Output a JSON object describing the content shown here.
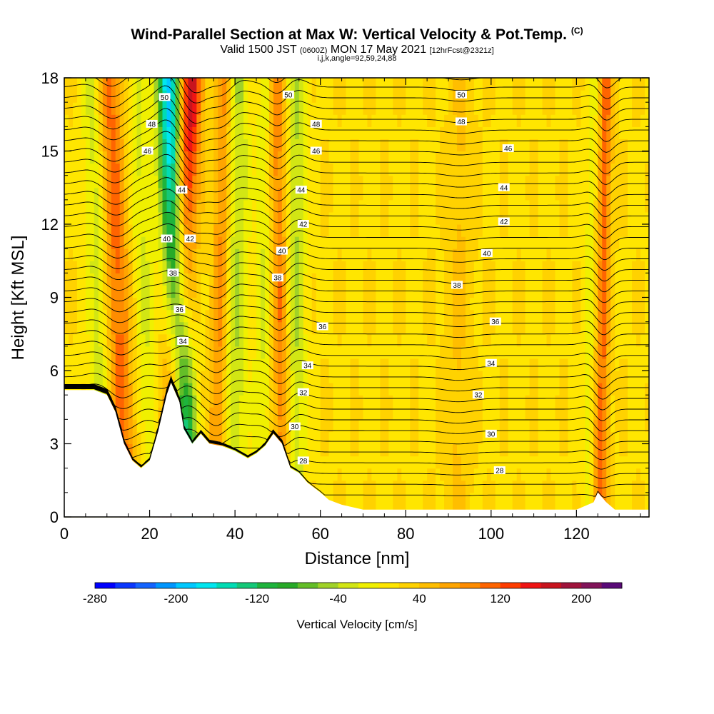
{
  "header": {
    "title": "Wind-Parallel Section at Max W: Vertical Velocity & Pot.Temp.",
    "copyright_mark": "(C)",
    "valid_prefix": "Valid 1500 JST",
    "valid_utc": "(0600Z)",
    "valid_date": "MON 17 May 2021",
    "forecast": "[12hrFcst@2321z]",
    "indices": "i,j,k,angle=92,59,24,88"
  },
  "chart_data": {
    "type": "heatmap",
    "xlabel": "Distance [nm]",
    "ylabel": "Height [Kft MSL]",
    "xlim": [
      0,
      137
    ],
    "ylim": [
      0,
      18
    ],
    "x_ticks": [
      0,
      20,
      40,
      60,
      80,
      100,
      120
    ],
    "y_ticks": [
      0,
      3,
      6,
      9,
      12,
      15,
      18
    ],
    "grid": false,
    "colorbar": {
      "label": "Vertical Velocity [cm/s]",
      "tick_values": [
        -280,
        -200,
        -120,
        -40,
        40,
        120,
        200
      ],
      "range": [
        -280,
        240
      ],
      "step": 20,
      "colors": [
        "#0000ff",
        "#0a37ff",
        "#1464ff",
        "#0096ff",
        "#00c8ff",
        "#00e6f0",
        "#00dcb4",
        "#14c878",
        "#1eb43c",
        "#28aa28",
        "#64be28",
        "#a0d228",
        "#d2e614",
        "#f0f000",
        "#ffe600",
        "#ffd200",
        "#ffbe00",
        "#ffa500",
        "#ff8c00",
        "#ff6400",
        "#ff3c00",
        "#f01414",
        "#c8141e",
        "#a0143c",
        "#82145a",
        "#5a0a78"
      ]
    },
    "terrain_profile": {
      "x": [
        0,
        7,
        10,
        12,
        14,
        16,
        18,
        20,
        22,
        24,
        25,
        27,
        28,
        30,
        32,
        34,
        37,
        40,
        43,
        45,
        47,
        49,
        51,
        53,
        55,
        57,
        60,
        62,
        65,
        70,
        100,
        120,
        124,
        125,
        127,
        129,
        131,
        137
      ],
      "y": [
        5.2,
        5.2,
        5.0,
        4.3,
        3.0,
        2.3,
        2.0,
        2.3,
        3.5,
        5.0,
        5.5,
        4.7,
        3.6,
        3.0,
        3.4,
        3.0,
        2.9,
        2.7,
        2.4,
        2.6,
        2.9,
        3.4,
        3.0,
        2.0,
        1.8,
        1.4,
        1.0,
        0.7,
        0.5,
        0.3,
        0.3,
        0.3,
        0.6,
        1.0,
        0.6,
        0.3,
        0.3,
        0.3
      ]
    },
    "velocity_bands": [
      {
        "x0": 14.5,
        "x1": 10.5,
        "w": 90,
        "width": 3.0
      },
      {
        "x0": 9.5,
        "x1": 6.5,
        "w": -50,
        "width": 2.5
      },
      {
        "x0": 20.5,
        "x1": 17.0,
        "w": -40,
        "width": 2.5
      },
      {
        "x0": 24.5,
        "x1": 29.5,
        "w": 160,
        "width": 3.0
      },
      {
        "x0": 28.5,
        "x1": 24.5,
        "w": -220,
        "width": 2.8
      },
      {
        "x0": 35.5,
        "x1": 37.5,
        "w": 70,
        "width": 2.0
      },
      {
        "x0": 39.5,
        "x1": 41.0,
        "w": -60,
        "width": 2.5
      },
      {
        "x0": 51.5,
        "x1": 49.5,
        "w": 80,
        "width": 2.0
      },
      {
        "x0": 54.0,
        "x1": 54.5,
        "w": -60,
        "width": 2.2
      },
      {
        "x0": 46.0,
        "x1": 47.5,
        "w": -40,
        "width": 2.0
      },
      {
        "x0": 125.5,
        "x1": 127.0,
        "w": 90,
        "width": 1.6
      },
      {
        "x0": 122.5,
        "x1": 124.0,
        "w": -30,
        "width": 1.5
      },
      {
        "x0": 92.0,
        "x1": 93.0,
        "w": 25,
        "width": 3.0
      }
    ],
    "contour_labels": [
      {
        "text": "50",
        "x": 23.5,
        "y": 17.2
      },
      {
        "text": "48",
        "x": 20.5,
        "y": 16.1
      },
      {
        "text": "46",
        "x": 19.5,
        "y": 15.0
      },
      {
        "text": "44",
        "x": 27.5,
        "y": 13.4
      },
      {
        "text": "42",
        "x": 29.5,
        "y": 11.4
      },
      {
        "text": "40",
        "x": 24.0,
        "y": 11.4
      },
      {
        "text": "38",
        "x": 25.5,
        "y": 10.0
      },
      {
        "text": "36",
        "x": 27.0,
        "y": 8.5
      },
      {
        "text": "34",
        "x": 27.8,
        "y": 7.2
      },
      {
        "text": "50",
        "x": 52.5,
        "y": 17.3
      },
      {
        "text": "48",
        "x": 59.0,
        "y": 16.1
      },
      {
        "text": "46",
        "x": 59.0,
        "y": 15.0
      },
      {
        "text": "44",
        "x": 55.5,
        "y": 13.4
      },
      {
        "text": "42",
        "x": 56.0,
        "y": 12.0
      },
      {
        "text": "40",
        "x": 51.0,
        "y": 10.9
      },
      {
        "text": "38",
        "x": 50.0,
        "y": 9.8
      },
      {
        "text": "36",
        "x": 60.5,
        "y": 7.8
      },
      {
        "text": "34",
        "x": 57.0,
        "y": 6.2
      },
      {
        "text": "32",
        "x": 56.0,
        "y": 5.1
      },
      {
        "text": "30",
        "x": 54.0,
        "y": 3.7
      },
      {
        "text": "28",
        "x": 56.0,
        "y": 2.3
      },
      {
        "text": "50",
        "x": 93.0,
        "y": 17.3
      },
      {
        "text": "48",
        "x": 93.0,
        "y": 16.2
      },
      {
        "text": "46",
        "x": 104.0,
        "y": 15.1
      },
      {
        "text": "44",
        "x": 103.0,
        "y": 13.5
      },
      {
        "text": "42",
        "x": 103.0,
        "y": 12.1
      },
      {
        "text": "40",
        "x": 99.0,
        "y": 10.8
      },
      {
        "text": "38",
        "x": 92.0,
        "y": 9.5
      },
      {
        "text": "36",
        "x": 101.0,
        "y": 8.0
      },
      {
        "text": "34",
        "x": 100.0,
        "y": 6.3
      },
      {
        "text": "32",
        "x": 97.0,
        "y": 5.0
      },
      {
        "text": "30",
        "x": 100.0,
        "y": 3.4
      },
      {
        "text": "28",
        "x": 102.0,
        "y": 1.9
      }
    ]
  }
}
